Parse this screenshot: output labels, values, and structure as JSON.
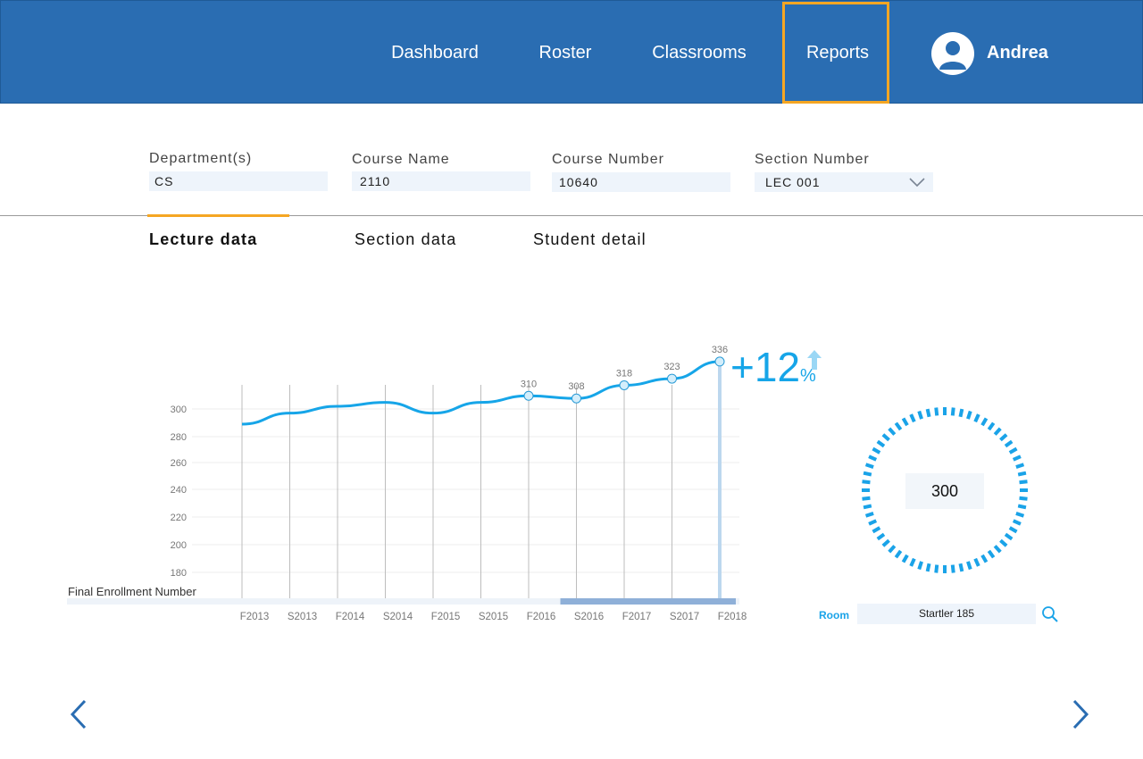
{
  "header": {
    "nav": [
      {
        "label": "Dashboard"
      },
      {
        "label": "Roster"
      },
      {
        "label": "Classrooms"
      },
      {
        "label": "Reports",
        "active": true
      }
    ],
    "user": {
      "name": "Andrea",
      "icon": "avatar-user-icon"
    }
  },
  "filters": {
    "department": {
      "label": "Department(s)",
      "value": "CS"
    },
    "course_name": {
      "label": "Course Name",
      "value": "2110"
    },
    "course_number": {
      "label": "Course Number",
      "value": "10640"
    },
    "section_number": {
      "label": "Section Number",
      "value": "LEC 001"
    }
  },
  "tabs": [
    {
      "label": "Lecture data",
      "active": true
    },
    {
      "label": "Section data"
    },
    {
      "label": "Student detail"
    }
  ],
  "colors": {
    "header_bg": "#2a6db2",
    "accent": "#f5a623",
    "line": "#16a5e8",
    "highlight": "#8fb0d8"
  },
  "chart_data": {
    "type": "line",
    "ylabel": "Final Enrollment Number",
    "categories": [
      "F2013",
      "S2013",
      "F2014",
      "S2014",
      "F2015",
      "S2015",
      "F2016",
      "S2016",
      "F2017",
      "S2017",
      "F2018"
    ],
    "values": [
      289,
      297,
      302,
      305,
      297,
      305,
      310,
      308,
      318,
      323,
      336
    ],
    "point_labels": [
      null,
      null,
      null,
      null,
      null,
      null,
      "310",
      "308",
      "318",
      "323",
      "336"
    ],
    "yticks": [
      300,
      280,
      260,
      240,
      220,
      200,
      180
    ],
    "ylim": [
      170,
      340
    ],
    "grid": true,
    "highlight_range": [
      "S2016",
      "F2018"
    ],
    "highlight_category": "F2018"
  },
  "change": {
    "value": "+12",
    "unit": "%",
    "direction": "up",
    "icon": "arrow-up-icon"
  },
  "gauge": {
    "value": "300"
  },
  "room": {
    "label": "Room",
    "value": "Startler 185",
    "icon": "search-icon"
  },
  "pager": {
    "prev_icon": "chevron-left-icon",
    "next_icon": "chevron-right-icon"
  }
}
